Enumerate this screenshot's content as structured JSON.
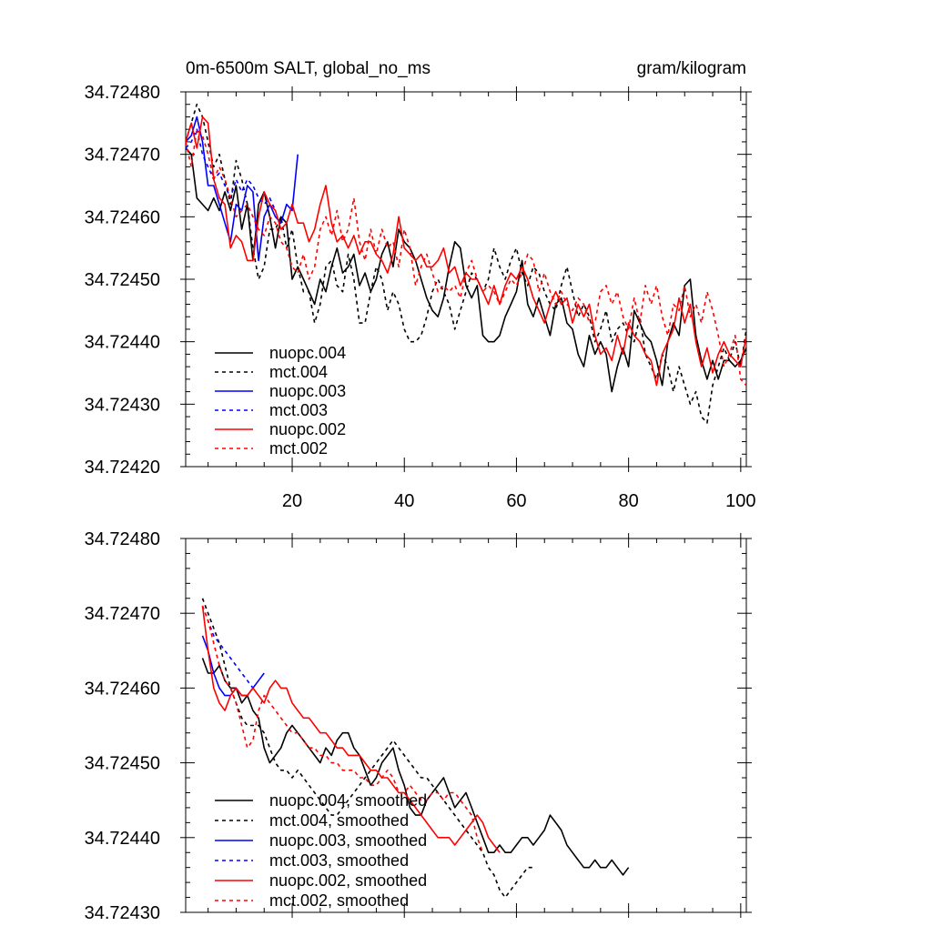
{
  "header": {
    "left_title": "0m-6500m SALT, global_no_ms",
    "right_title": "gram/kilogram"
  },
  "colors": {
    "black": "#000000",
    "blue": "#0000ff",
    "red": "#ff0000"
  },
  "chart_data": [
    {
      "type": "line",
      "panel": "raw",
      "xlim": [
        1,
        101
      ],
      "ylim": [
        34.7242,
        34.7248
      ],
      "x_ticks": [
        20,
        40,
        60,
        80,
        100
      ],
      "y_ticks": [
        34.7242,
        34.7243,
        34.7244,
        34.7245,
        34.7246,
        34.7247,
        34.7248
      ],
      "y_tick_labels": [
        "34.72420",
        "34.72430",
        "34.72440",
        "34.72450",
        "34.72460",
        "34.72470",
        "34.72480"
      ],
      "legend_position": "bottom-left",
      "series": [
        {
          "name": "nuopc.004",
          "color": "#000000",
          "dash": "solid",
          "x_start": 1,
          "values": [
            34.72471,
            34.7247,
            34.72463,
            34.72462,
            34.72461,
            34.72463,
            34.72461,
            34.72464,
            34.72461,
            34.72465,
            34.72458,
            34.72462,
            34.72453,
            34.72462,
            34.72464,
            34.7246,
            34.72455,
            34.7246,
            34.72459,
            34.7245,
            34.72452,
            34.7245,
            34.72448,
            34.72446,
            34.7245,
            34.72448,
            34.72452,
            34.72455,
            34.72451,
            34.72452,
            34.72454,
            34.72449,
            34.72451,
            34.72448,
            34.7245,
            34.72454,
            34.72456,
            34.72452,
            34.72458,
            34.72456,
            34.72455,
            34.72453,
            34.7245,
            34.72447,
            34.72445,
            34.72444,
            34.72447,
            34.72452,
            34.72456,
            34.72455,
            34.72449,
            34.72447,
            34.72449,
            34.72441,
            34.7244,
            34.7244,
            34.72441,
            34.72444,
            34.72446,
            34.72448,
            34.72453,
            34.72446,
            34.72444,
            34.72447,
            34.72444,
            34.72441,
            34.72446,
            34.72447,
            34.72443,
            34.72442,
            34.72438,
            34.72436,
            34.72441,
            34.72438,
            34.7244,
            34.72438,
            34.72432,
            34.72436,
            34.72439,
            34.72436,
            34.72445,
            34.72443,
            34.72441,
            34.7244,
            34.72437,
            34.72433,
            34.7244,
            34.72443,
            34.72441,
            34.72449,
            34.7245,
            34.72441,
            34.72437,
            34.72434,
            34.72437,
            34.72434,
            34.72437,
            34.72437,
            34.72436,
            34.72437,
            34.72439
          ]
        },
        {
          "name": "mct.004",
          "color": "#000000",
          "dash": "dashed",
          "x_start": 1,
          "values": [
            34.72472,
            34.72475,
            34.72478,
            34.72476,
            34.72472,
            34.72468,
            34.7247,
            34.72466,
            34.72462,
            34.72469,
            34.72466,
            34.72462,
            34.72455,
            34.7245,
            34.72452,
            34.72458,
            34.72458,
            34.7246,
            34.72455,
            34.72458,
            34.72452,
            34.72448,
            34.72448,
            34.72443,
            34.72446,
            34.72452,
            34.72453,
            34.72449,
            34.72448,
            34.72454,
            34.7245,
            34.72443,
            34.72443,
            34.72448,
            34.72452,
            34.7245,
            34.72445,
            34.72448,
            34.72446,
            34.72442,
            34.7244,
            34.7244,
            34.72441,
            34.72444,
            34.72448,
            34.7245,
            34.72448,
            34.72446,
            34.72442,
            34.72445,
            34.72448,
            34.72451,
            34.7245,
            34.72448,
            34.7245,
            34.72455,
            34.72452,
            34.7245,
            34.72453,
            34.72455,
            34.72451,
            34.72449,
            34.72452,
            34.72451,
            34.72448,
            34.72446,
            34.72445,
            34.72449,
            34.72452,
            34.72448,
            34.72444,
            34.72446,
            34.72444,
            34.7244,
            34.72442,
            34.72445,
            34.7244,
            34.72442,
            34.72443,
            34.72441,
            34.7244,
            34.72444,
            34.72438,
            34.72436,
            34.72434,
            34.72438,
            34.72436,
            34.72432,
            34.72436,
            34.72433,
            34.7243,
            34.72432,
            34.72428,
            34.72427,
            34.72433,
            34.72436,
            34.72439,
            34.72437,
            34.7244,
            34.72436,
            34.72442
          ]
        },
        {
          "name": "nuopc.003",
          "color": "#0000ff",
          "dash": "solid",
          "x_start": 1,
          "values": [
            34.72472,
            34.72473,
            34.72476,
            34.72472,
            34.72465,
            34.72465,
            34.72462,
            34.72459,
            34.72456,
            34.72462,
            34.72461,
            34.72465,
            34.72464,
            34.72453,
            34.7246,
            34.72462,
            34.7246,
            34.72459,
            34.72462,
            34.72461,
            34.7247
          ]
        },
        {
          "name": "mct.003",
          "color": "#0000ff",
          "dash": "dashed",
          "x_start": 1,
          "values": [
            34.72471,
            34.72472,
            34.72474,
            34.7247,
            34.72468,
            34.72466,
            34.72467,
            34.72465,
            34.72463,
            34.72466,
            34.72464,
            34.72466,
            34.72465,
            34.72463,
            34.72462,
            34.72463,
            34.72461
          ]
        },
        {
          "name": "nuopc.002",
          "color": "#ff0000",
          "dash": "solid",
          "x_start": 1,
          "values": [
            34.72472,
            34.72475,
            34.72471,
            34.72476,
            34.72475,
            34.72466,
            34.72463,
            34.72462,
            34.72455,
            34.72457,
            34.72456,
            34.72453,
            34.72453,
            34.7246,
            34.72464,
            34.72462,
            34.72461,
            34.72458,
            34.72459,
            34.72462,
            34.72459,
            34.72459,
            34.72456,
            34.72458,
            34.72462,
            34.72465,
            34.72459,
            34.72456,
            34.72457,
            34.72455,
            34.72457,
            34.72454,
            34.72456,
            34.72456,
            34.72454,
            34.72453,
            34.72451,
            34.72454,
            34.7246,
            34.72455,
            34.72454,
            34.72453,
            34.72454,
            34.72452,
            34.72452,
            34.72453,
            34.72455,
            34.72451,
            34.72452,
            34.72449,
            34.72451,
            34.7245,
            34.7245,
            34.72448,
            34.72446,
            34.72449,
            34.72446,
            34.72449,
            34.72451,
            34.7245,
            34.72452,
            34.7245,
            34.72447,
            34.72445,
            34.72443,
            34.72446,
            34.72448,
            34.72446,
            34.72447,
            34.72443,
            34.72446,
            34.72444,
            34.72446,
            34.72441,
            34.72438,
            34.72439,
            34.72437,
            34.72441,
            34.72438,
            34.72443,
            34.72441,
            34.7244,
            34.72438,
            34.72437,
            34.72433,
            34.72438,
            34.7244,
            34.72442,
            34.72447,
            34.72443,
            34.72446,
            34.7244,
            34.72436,
            34.72439,
            34.72435,
            34.72438,
            34.7244,
            34.72438,
            34.72437,
            34.72436,
            34.72441
          ]
        },
        {
          "name": "mct.002",
          "color": "#ff0000",
          "dash": "dashed",
          "x_start": 1,
          "values": [
            34.72472,
            34.72468,
            34.72474,
            34.72473,
            34.7247,
            34.72466,
            34.72468,
            34.72466,
            34.72463,
            34.7246,
            34.72461,
            34.72462,
            34.7246,
            34.72458,
            34.72457,
            34.7246,
            34.72459,
            34.72456,
            34.72455,
            34.72452,
            34.72451,
            34.72454,
            34.7245,
            34.72452,
            34.72458,
            34.7246,
            34.72457,
            34.72461,
            34.72456,
            34.72458,
            34.72463,
            34.72456,
            34.72453,
            34.72458,
            34.72454,
            34.72458,
            34.72455,
            34.72456,
            34.72452,
            34.72458,
            34.72455,
            34.72449,
            34.72452,
            34.72454,
            34.72451,
            34.72448,
            34.72449,
            34.72448,
            34.72449,
            34.72447,
            34.72451,
            34.72453,
            34.7245,
            34.72448,
            34.72449,
            34.72448,
            34.72446,
            34.72448,
            34.7245,
            34.72449,
            34.72451,
            34.72454,
            34.72453,
            34.72448,
            34.72451,
            34.72448,
            34.72446,
            34.72448,
            34.72446,
            34.72445,
            34.72447,
            34.72446,
            34.72443,
            34.72443,
            34.72448,
            34.72449,
            34.72446,
            34.72448,
            34.72444,
            34.72442,
            34.72447,
            34.72443,
            34.72449,
            34.72446,
            34.72449,
            34.72444,
            34.72441,
            34.72446,
            34.72445,
            34.72449,
            34.72444,
            34.72446,
            34.72443,
            34.72448,
            34.72445,
            34.72441,
            34.72436,
            34.72438,
            34.72441,
            34.72434,
            34.72433
          ]
        }
      ]
    },
    {
      "type": "line",
      "panel": "smoothed",
      "xlim": [
        1,
        101
      ],
      "ylim": [
        34.7243,
        34.7248
      ],
      "x_ticks": [
        20,
        40,
        60,
        80,
        100
      ],
      "y_ticks": [
        34.7243,
        34.7244,
        34.7245,
        34.7246,
        34.7247,
        34.7248
      ],
      "y_tick_labels": [
        "34.72430",
        "34.72440",
        "34.72450",
        "34.72460",
        "34.72470",
        "34.72480"
      ],
      "legend_position": "bottom-left",
      "series": [
        {
          "name": "nuopc.004, smoothed",
          "color": "#000000",
          "dash": "solid",
          "x_start": 4,
          "values": [
            34.72464,
            34.72462,
            34.72462,
            34.72463,
            34.72461,
            34.7246,
            34.7246,
            34.72458,
            34.72459,
            34.72457,
            34.72456,
            34.72452,
            34.7245,
            34.72451,
            34.72452,
            34.72454,
            34.72455,
            34.72454,
            34.72453,
            34.72452,
            34.72451,
            34.7245,
            34.72452,
            34.72451,
            34.72453,
            34.72454,
            34.72454,
            34.72452,
            34.72451,
            34.72449,
            34.72447,
            34.72448,
            34.7245,
            34.72451,
            34.72452,
            34.72449,
            34.72447,
            34.72444,
            34.72443,
            34.72443,
            34.72445,
            34.72446,
            34.72447,
            34.72448,
            34.72446,
            34.72444,
            34.72445,
            34.72446,
            34.72444,
            34.72442,
            34.7244,
            34.72438,
            34.72438,
            34.72439,
            34.72438,
            34.72438,
            34.72439,
            34.7244,
            34.7244,
            34.72439,
            34.7244,
            34.72441,
            34.72443,
            34.72442,
            34.72441,
            34.72439,
            34.72438,
            34.72437,
            34.72436,
            34.72436,
            34.72437,
            34.72436,
            34.72436,
            34.72437,
            34.72436,
            34.72435,
            34.72436
          ]
        },
        {
          "name": "mct.004, smoothed",
          "color": "#000000",
          "dash": "dashed",
          "x_start": 4,
          "values": [
            34.72472,
            34.7247,
            34.72468,
            34.72466,
            34.72463,
            34.7246,
            34.72458,
            34.72456,
            34.72455,
            34.72455,
            34.72455,
            34.72454,
            34.72452,
            34.7245,
            34.72449,
            34.72449,
            34.72448,
            34.72449,
            34.72448,
            34.72447,
            34.72446,
            34.72445,
            34.72444,
            34.72443,
            34.72443,
            34.72444,
            34.72445,
            34.72446,
            34.72447,
            34.72448,
            34.72449,
            34.7245,
            34.72451,
            34.72452,
            34.72453,
            34.72452,
            34.72451,
            34.7245,
            34.72449,
            34.72448,
            34.72448,
            34.72447,
            34.72446,
            34.72445,
            34.72444,
            34.72443,
            34.72442,
            34.72441,
            34.7244,
            34.72439,
            34.72438,
            34.72436,
            34.72435,
            34.72433,
            34.72432,
            34.72433,
            34.72434,
            34.72435,
            34.72436,
            34.72436
          ]
        },
        {
          "name": "nuopc.003, smoothed",
          "color": "#0000ff",
          "dash": "solid",
          "x_start": 4,
          "values": [
            34.72467,
            34.72465,
            34.72462,
            34.7246,
            34.72459,
            34.72459,
            34.7246,
            34.72459,
            34.72459,
            34.7246,
            34.72461,
            34.72462
          ]
        },
        {
          "name": "mct.003, smoothed",
          "color": "#0000ff",
          "dash": "dashed",
          "x_start": 4,
          "values": [
            34.72471,
            34.72469,
            34.72467,
            34.72466,
            34.72465,
            34.72464,
            34.72463,
            34.72462,
            34.72461,
            34.7246
          ]
        },
        {
          "name": "nuopc.002, smoothed",
          "color": "#ff0000",
          "dash": "solid",
          "x_start": 4,
          "values": [
            34.72471,
            34.72465,
            34.7246,
            34.72458,
            34.72457,
            34.72459,
            34.7246,
            34.72459,
            34.72459,
            34.7246,
            34.72459,
            34.72458,
            34.7246,
            34.72461,
            34.7246,
            34.7246,
            34.72458,
            34.72457,
            34.72456,
            34.72456,
            34.72455,
            34.72454,
            34.72454,
            34.72453,
            34.72452,
            34.72452,
            34.72451,
            34.72451,
            34.72451,
            34.7245,
            34.72449,
            34.72449,
            34.72448,
            34.72448,
            34.72447,
            34.72446,
            34.72446,
            34.72445,
            34.72444,
            34.72443,
            34.72442,
            34.72441,
            34.7244,
            34.7244,
            34.7244,
            34.72439,
            34.7244,
            34.72441,
            34.72442,
            34.72443,
            34.72442,
            34.7244,
            34.72439,
            34.72438
          ]
        },
        {
          "name": "mct.002, smoothed",
          "color": "#ff0000",
          "dash": "dashed",
          "x_start": 4,
          "values": [
            34.72471,
            34.72469,
            34.72466,
            34.72463,
            34.72461,
            34.7246,
            34.72458,
            34.72455,
            34.72452,
            34.72453,
            34.72457,
            34.72459,
            34.72458,
            34.72457,
            34.72456,
            34.72455,
            34.72454,
            34.72454,
            34.72453,
            34.72452,
            34.72452,
            34.72451,
            34.72451,
            34.7245,
            34.7245,
            34.72449,
            34.72449,
            34.72449,
            34.72448,
            34.72448,
            34.72447,
            34.72447,
            34.72448,
            34.72449,
            34.72448,
            34.72446,
            34.72446,
            34.72447,
            34.72446,
            34.72445,
            34.72445,
            34.72446,
            34.72446,
            34.72445,
            34.72446,
            34.72446,
            34.72445,
            34.72444,
            34.72443,
            34.7244,
            34.72438
          ]
        }
      ]
    }
  ]
}
